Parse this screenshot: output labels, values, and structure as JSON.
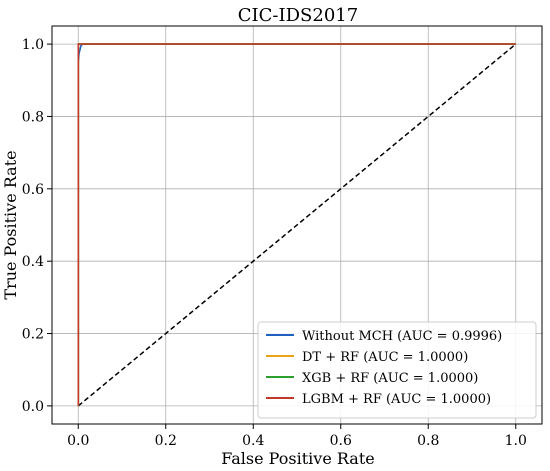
{
  "chart_data": {
    "type": "line",
    "title": "CIC-IDS2017",
    "xlabel": "False Positive Rate",
    "ylabel": "True Positive Rate",
    "xlim": [
      -0.06,
      1.06
    ],
    "ylim": [
      -0.05,
      1.05
    ],
    "xticks": [
      "0.0",
      "0.2",
      "0.4",
      "0.6",
      "0.8",
      "1.0"
    ],
    "yticks": [
      "0.0",
      "0.2",
      "0.4",
      "0.6",
      "0.8",
      "1.0"
    ],
    "grid": true,
    "legend_position": "lower-right",
    "series": [
      {
        "name": "Without MCH (AUC = 0.9996)",
        "color": "#1f5fbf",
        "x": [
          0,
          0,
          0.002,
          0.004,
          0.006,
          0.01,
          1.0
        ],
        "y": [
          0,
          0.95,
          0.975,
          0.985,
          0.995,
          1.0,
          1.0
        ]
      },
      {
        "name": "DT + RF (AUC = 1.0000)",
        "color": "#e8a317",
        "x": [
          0,
          0,
          1.0
        ],
        "y": [
          0,
          1.0,
          1.0
        ]
      },
      {
        "name": "XGB + RF (AUC = 1.0000)",
        "color": "#2ca02c",
        "x": [
          0,
          0,
          1.0
        ],
        "y": [
          0,
          1.0,
          1.0
        ]
      },
      {
        "name": "LGBM + RF (AUC = 1.0000)",
        "color": "#c0392b",
        "x": [
          0,
          0,
          1.0
        ],
        "y": [
          0,
          1.0,
          1.0
        ]
      }
    ],
    "reference_line": {
      "x": [
        0,
        1
      ],
      "y": [
        0,
        1
      ],
      "style": "dashed",
      "color": "#000000"
    }
  }
}
